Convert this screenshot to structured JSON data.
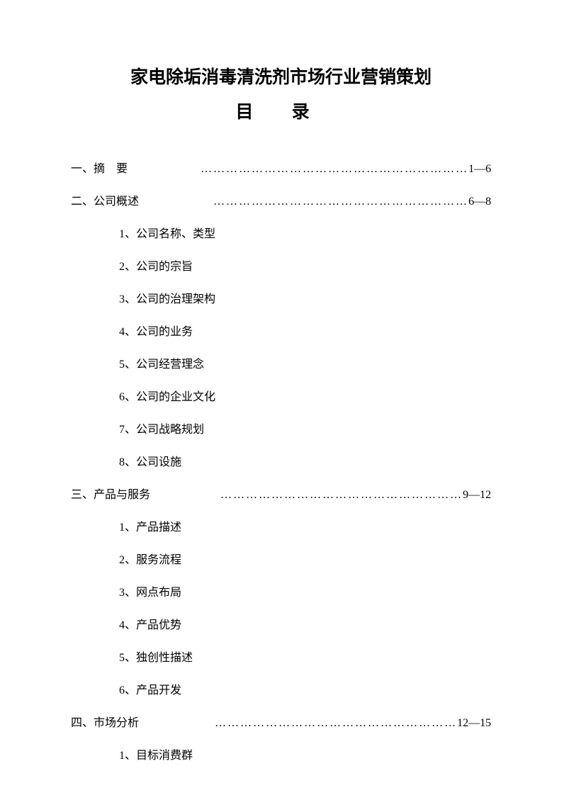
{
  "title": "家电除垢消毒清洗剂市场行业营销策划",
  "subtitle": "目 录",
  "sections": [
    {
      "number": "一、",
      "title": "摘　要",
      "dots": "………………………………………………………",
      "pages": "1—6",
      "items": []
    },
    {
      "number": "二、",
      "title": "公司概述",
      "dots": "……………………………………………………",
      "pages": "6—8",
      "items": [
        "1、公司名称、类型",
        "2、公司的宗旨",
        "3、公司的治理架构",
        "4、公司的业务",
        "5、公司经营理念",
        "6、公司的企业文化",
        "7、公司战略规划",
        "8、公司设施"
      ]
    },
    {
      "number": "三、",
      "title": "产品与服务 ",
      "dots": "…………………………………………………",
      "pages": "9—12",
      "items": [
        "1、产品描述",
        "2、服务流程",
        "3、网点布局",
        "4、产品优势",
        "5、独创性描述",
        "6、产品开发"
      ]
    },
    {
      "number": "四、",
      "title": "市场分析",
      "dots": "…………………………………………………",
      "pages": "12—15",
      "items": [
        "1、目标消费群"
      ]
    }
  ]
}
